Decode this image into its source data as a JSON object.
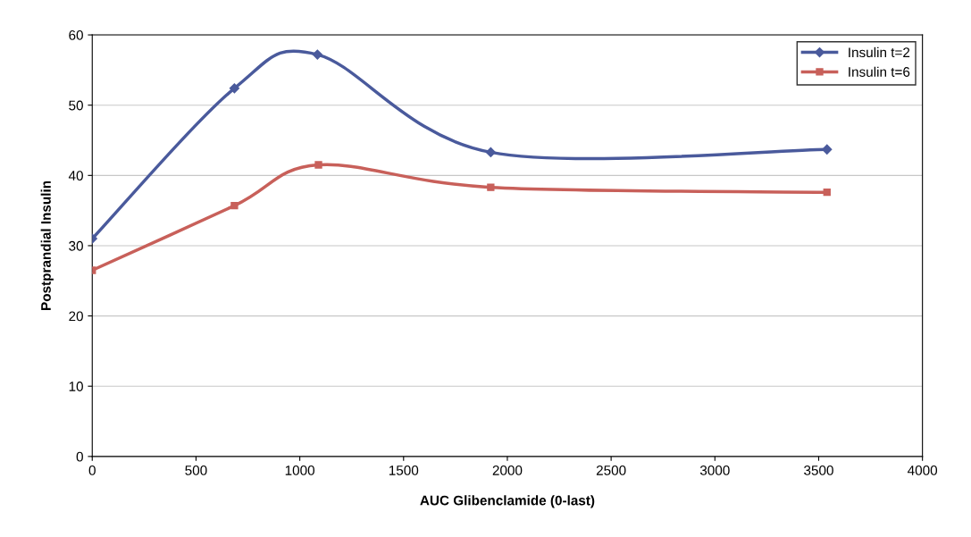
{
  "chart_data": {
    "type": "line",
    "xlabel": "AUC Glibenclamide (0-last)",
    "ylabel": "Postprandial Insulin",
    "xlim": [
      0,
      4000
    ],
    "xticks": [
      0,
      500,
      1000,
      1500,
      2000,
      2500,
      3000,
      3500,
      4000
    ],
    "ylim": [
      0,
      60
    ],
    "yticks": [
      0,
      10,
      20,
      30,
      40,
      50,
      60
    ],
    "grid": "y",
    "legend": "top right",
    "line_style": "solid",
    "series": [
      {
        "name": "Insulin t=2",
        "color": "#4a5a9c",
        "marker": "diamond",
        "x": [
          0,
          685,
          1085,
          1920,
          3540
        ],
        "values": [
          31,
          52.4,
          57.2,
          43.3,
          43.7
        ]
      },
      {
        "name": "Insulin t=6",
        "color": "#c8605a",
        "marker": "square",
        "x": [
          0,
          685,
          1090,
          1920,
          3540
        ],
        "values": [
          26.5,
          35.7,
          41.5,
          38.3,
          37.6
        ]
      }
    ]
  }
}
